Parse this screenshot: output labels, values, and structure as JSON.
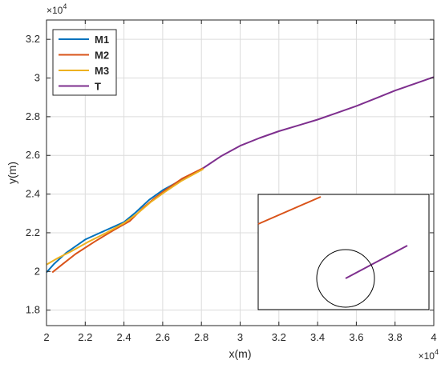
{
  "chart_data": {
    "type": "line",
    "xlabel": "x(m)",
    "ylabel": "y(m)",
    "x_exponent_label": "×10^4",
    "y_exponent_label": "×10^4",
    "xlim": [
      20000,
      40000
    ],
    "ylim": [
      17200,
      33000
    ],
    "x_ticks": [
      20000,
      22000,
      24000,
      26000,
      28000,
      30000,
      32000,
      34000,
      36000,
      38000,
      40000
    ],
    "x_tick_labels": [
      "2",
      "2.2",
      "2.4",
      "2.6",
      "2.8",
      "3",
      "3.2",
      "3.4",
      "3.6",
      "3.8",
      "4"
    ],
    "y_ticks": [
      18000,
      20000,
      22000,
      24000,
      26000,
      28000,
      30000,
      32000
    ],
    "y_tick_labels": [
      "1.8",
      "2",
      "2.2",
      "2.4",
      "2.6",
      "2.8",
      "3",
      "3.2"
    ],
    "grid": true,
    "legend_position": "top-left",
    "series": [
      {
        "name": "M1",
        "color": "#0072bd",
        "points": [
          [
            20000,
            19950
          ],
          [
            20400,
            20400
          ],
          [
            21000,
            20950
          ],
          [
            22000,
            21650
          ],
          [
            23000,
            22100
          ],
          [
            24000,
            22550
          ],
          [
            24600,
            23050
          ],
          [
            25300,
            23700
          ],
          [
            26000,
            24200
          ],
          [
            27000,
            24750
          ],
          [
            28100,
            25350
          ]
        ]
      },
      {
        "name": "M2",
        "color": "#d95319",
        "points": [
          [
            20300,
            19950
          ],
          [
            20800,
            20350
          ],
          [
            21500,
            20900
          ],
          [
            22500,
            21550
          ],
          [
            23500,
            22150
          ],
          [
            24300,
            22600
          ],
          [
            25000,
            23300
          ],
          [
            25600,
            23800
          ],
          [
            26200,
            24250
          ],
          [
            27000,
            24800
          ],
          [
            28100,
            25350
          ]
        ]
      },
      {
        "name": "M3",
        "color": "#edb120",
        "points": [
          [
            20000,
            20350
          ],
          [
            20600,
            20700
          ],
          [
            21300,
            21050
          ],
          [
            22200,
            21550
          ],
          [
            23000,
            21950
          ],
          [
            24000,
            22500
          ],
          [
            24700,
            23000
          ],
          [
            25400,
            23600
          ],
          [
            26100,
            24100
          ],
          [
            27000,
            24700
          ],
          [
            28100,
            25300
          ]
        ]
      },
      {
        "name": "T",
        "color": "#7e2f8e",
        "points": [
          [
            28100,
            25350
          ],
          [
            29000,
            25950
          ],
          [
            30000,
            26500
          ],
          [
            31000,
            26900
          ],
          [
            32000,
            27250
          ],
          [
            33000,
            27550
          ],
          [
            34000,
            27850
          ],
          [
            35000,
            28200
          ],
          [
            36000,
            28550
          ],
          [
            37000,
            28950
          ],
          [
            38000,
            29350
          ],
          [
            39000,
            29700
          ],
          [
            40000,
            30050
          ]
        ]
      }
    ],
    "inset": {
      "border": true,
      "circle_marker": true
    }
  }
}
